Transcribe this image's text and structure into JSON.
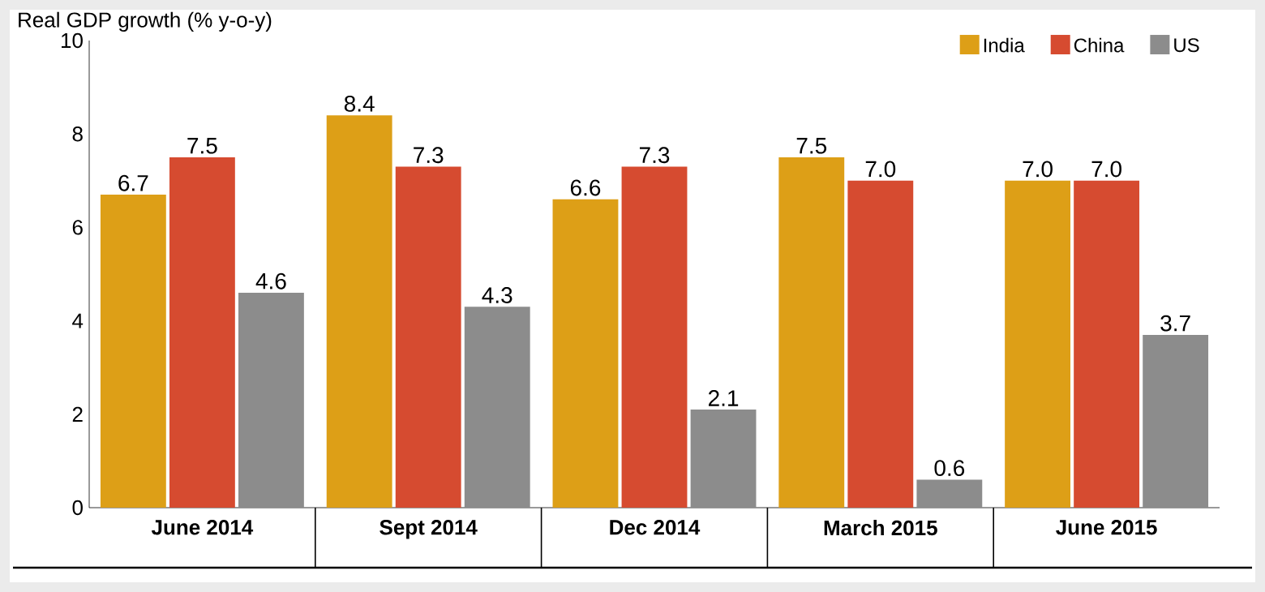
{
  "chart_data": {
    "type": "bar",
    "ylabel": "Real GDP growth (% y-o-y)",
    "categories": [
      "June 2014",
      "Sept 2014",
      "Dec 2014",
      "March 2015",
      "June 2015"
    ],
    "series": [
      {
        "name": "India",
        "color": "#dd9f17",
        "values": [
          6.7,
          8.4,
          6.6,
          7.5,
          7.0
        ],
        "value_labels": [
          "6.7",
          "8.4",
          "6.6",
          "7.5",
          "7.0"
        ]
      },
      {
        "name": "China",
        "color": "#d64b30",
        "values": [
          7.5,
          7.3,
          7.3,
          7.0,
          7.0
        ],
        "value_labels": [
          "7.5",
          "7.3",
          "7.3",
          "7.0",
          "7.0"
        ]
      },
      {
        "name": "US",
        "color": "#8c8c8c",
        "values": [
          4.6,
          4.3,
          2.1,
          0.6,
          3.7
        ],
        "value_labels": [
          "4.6",
          "4.3",
          "2.1",
          "0.6",
          "3.7"
        ]
      }
    ],
    "ylim": [
      0,
      10
    ],
    "yticks": [
      0,
      2,
      4,
      6,
      8,
      10
    ],
    "legend": "top right",
    "grid": false
  }
}
